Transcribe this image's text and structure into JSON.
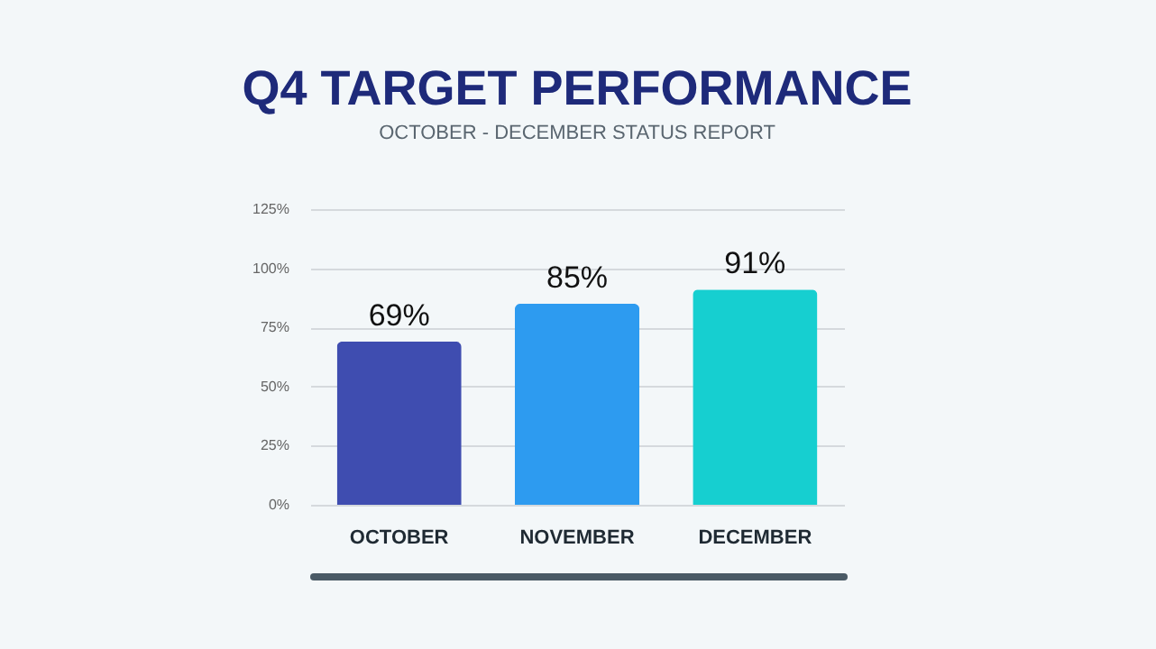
{
  "chart_data": {
    "type": "bar",
    "title": "Q4 TARGET PERFORMANCE",
    "subtitle": "OCTOBER - DECEMBER STATUS REPORT",
    "categories": [
      "OCTOBER",
      "NOVEMBER",
      "DECEMBER"
    ],
    "values": [
      69,
      85,
      91
    ],
    "colors": [
      "#3f4db0",
      "#2d9bf0",
      "#16cfd0"
    ],
    "value_labels": [
      "69%",
      "85%",
      "91%"
    ],
    "ylim": [
      0,
      125
    ],
    "yticks": [
      {
        "value": 0,
        "label": "0%"
      },
      {
        "value": 25,
        "label": "25%"
      },
      {
        "value": 50,
        "label": "50%"
      },
      {
        "value": 75,
        "label": "75%"
      },
      {
        "value": 100,
        "label": "100%"
      },
      {
        "value": 125,
        "label": "125%"
      }
    ],
    "grid": "y"
  }
}
